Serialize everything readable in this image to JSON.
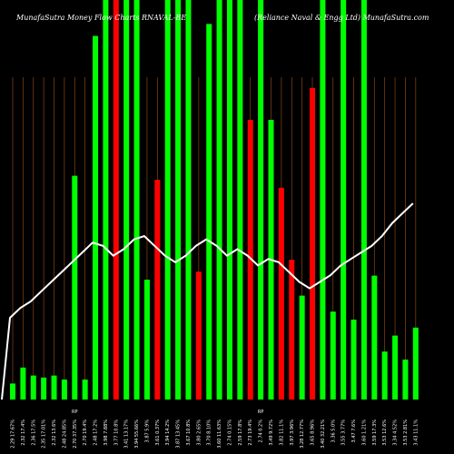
{
  "header": {
    "left": "MunafaSutra  Money Flow  Charts RNAVAL-BE",
    "right": "(Reliance   Naval & Engg Ltd) MunafaSutra.com"
  },
  "colors": {
    "background": "#000000",
    "up": "#00ff00",
    "down": "#ff0000",
    "grid": "#8b4513",
    "line": "#ffffff"
  },
  "chart_data": {
    "type": "bar",
    "title": "MunafaSutra  Money Flow  Charts RNAVAL-BE",
    "subtitle": "(Reliance   Naval & Engg Ltd) MunafaSutra.com",
    "grid": true,
    "ylim": [
      0,
      100
    ],
    "categories": [
      "2.29 17.67%",
      "2.32 17.4%",
      "2.36 17.5%",
      "2.35 17.01%",
      "2.32 13.6%",
      "2.48 24.85%",
      "2.70 37.35%",
      "2.70 19.4%",
      "2.48 17.2%",
      "3.98 7.88%",
      "3.77 10.8%",
      "3.41 13.17%",
      "3.94 55.66%",
      "3.87 5.9%",
      "3.61 0.37%",
      "3.94 14.2%",
      "3.87 13.45%",
      "3.67 10.8%",
      "3.80 2.65%",
      "3.70 8.10%",
      "3.60 11.63%",
      "2.74 0.15%",
      "2.59 17.8%",
      "2.73 19.4%",
      "2.74 0.2%",
      "3.49 9.72%",
      "3.82 11.1%",
      "3.97 3.96%",
      "3.28 12.77%",
      "3.65 8.96%",
      "3.40 32.21%",
      "3.36 5.0%",
      "3.55 3.77%",
      "3.47 7.6%",
      "3.60 1.21%",
      "3.59 17.3%",
      "3.53 12.6%",
      "3.34 4.52%",
      "3.53 2.81%",
      "3.43 11.1%"
    ],
    "series": [
      {
        "values": [
          4,
          8,
          6,
          5.5,
          6,
          5,
          56,
          5,
          91,
          100,
          100,
          100,
          100,
          30,
          55,
          100,
          100,
          100,
          32,
          94,
          100,
          100,
          100,
          70,
          100,
          70,
          53,
          35,
          26,
          78,
          100,
          22,
          100,
          20,
          100,
          31,
          12,
          16,
          10,
          18
        ],
        "colors": [
          "g",
          "g",
          "g",
          "g",
          "g",
          "g",
          "g",
          "g",
          "g",
          "g",
          "r",
          "g",
          "g",
          "g",
          "r",
          "g",
          "g",
          "g",
          "r",
          "g",
          "g",
          "g",
          "g",
          "r",
          "g",
          "g",
          "r",
          "r",
          "g",
          "r",
          "g",
          "g",
          "g",
          "g",
          "g",
          "g",
          "g",
          "g",
          "g",
          "g"
        ]
      },
      {
        "values": [
          25,
          28,
          30,
          33,
          36,
          39,
          42,
          45,
          48,
          47,
          44,
          46,
          49,
          50,
          47,
          44,
          42,
          44,
          47,
          49,
          47,
          44,
          46,
          44,
          41,
          43,
          42,
          39,
          36,
          34,
          36,
          38,
          41,
          43,
          45,
          47,
          50,
          54,
          57,
          60
        ]
      }
    ],
    "bar_values_green": [
      56,
      91,
      100,
      30,
      94,
      70,
      53,
      35,
      78,
      31
    ],
    "rp_markers": [
      "RP",
      "RP"
    ],
    "rp_marker_indices": [
      6,
      24
    ]
  }
}
